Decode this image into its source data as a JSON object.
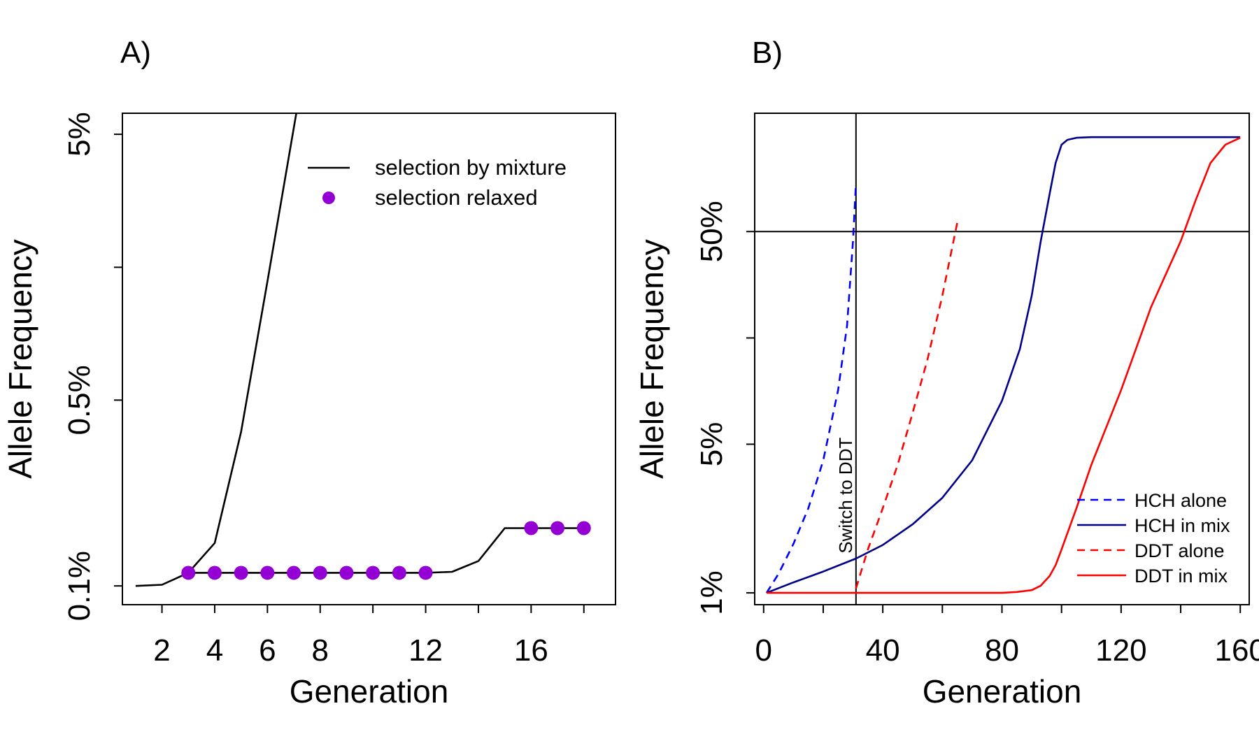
{
  "chart_data": [
    {
      "panel_label": "A)",
      "type": "line",
      "xlabel": "Generation",
      "ylabel": "Allele Frequency",
      "y_scale": "log",
      "xlim": [
        0.5,
        19.2
      ],
      "ylim_percent": [
        0.085,
        6.0
      ],
      "x_ticks": [
        2,
        4,
        6,
        8,
        12,
        16
      ],
      "x_tick_labels": [
        "2",
        "4",
        "6",
        "8",
        "12",
        "16"
      ],
      "x_tick_marks": [
        2,
        4,
        6,
        8,
        10,
        12,
        14,
        16,
        18
      ],
      "y_ticks": [
        0.1,
        0.5,
        5
      ],
      "y_tick_labels": [
        "0.1%",
        "0.5%",
        "5%"
      ],
      "y_tick_marks": [
        0.1,
        0.5,
        1.58,
        5
      ],
      "legend_position": "top-right",
      "legend": [
        {
          "label": "selection by mixture",
          "symbol": "line",
          "color": "#000000"
        },
        {
          "label": "selection relaxed",
          "symbol": "dot",
          "color": "#9400D3"
        }
      ],
      "series": [
        {
          "name": "selection by mixture",
          "style": "solid",
          "color": "#000000",
          "x": [
            1,
            2,
            3,
            4,
            5,
            6,
            7,
            8
          ],
          "y": [
            0.1,
            0.101,
            0.112,
            0.145,
            0.38,
            1.4,
            5.3,
            20
          ]
        },
        {
          "name": "selection relaxed",
          "style": "solid",
          "color": "#000000",
          "x": [
            3,
            4,
            5,
            6,
            7,
            8,
            9,
            10,
            11,
            12,
            13,
            14,
            15,
            16,
            17,
            18
          ],
          "y": [
            0.112,
            0.112,
            0.112,
            0.112,
            0.112,
            0.112,
            0.112,
            0.112,
            0.112,
            0.112,
            0.113,
            0.124,
            0.165,
            0.165,
            0.165,
            0.165
          ]
        },
        {
          "name": "selection relaxed",
          "style": "points",
          "color": "#9400D3",
          "x": [
            3,
            4,
            5,
            6,
            7,
            8,
            9,
            10,
            11,
            12,
            16,
            17,
            18
          ],
          "y": [
            0.112,
            0.112,
            0.112,
            0.112,
            0.112,
            0.112,
            0.112,
            0.112,
            0.112,
            0.112,
            0.165,
            0.165,
            0.165
          ]
        }
      ]
    },
    {
      "panel_label": "B)",
      "type": "line",
      "xlabel": "Generation",
      "ylabel": "Allele Frequency",
      "y_scale": "log",
      "xlim": [
        -3,
        163
      ],
      "ylim_percent": [
        0.88,
        180
      ],
      "x_ticks": [
        0,
        40,
        80,
        120,
        160
      ],
      "x_tick_labels": [
        "0",
        "40",
        "80",
        "120",
        "160"
      ],
      "x_tick_marks": [
        0,
        20,
        40,
        60,
        80,
        100,
        120,
        140,
        160
      ],
      "y_ticks": [
        1,
        5,
        50
      ],
      "y_tick_labels": [
        "1%",
        "5%",
        "50%"
      ],
      "y_tick_marks": [
        1,
        5,
        15.8,
        50
      ],
      "reference_lines": {
        "vertical_x": 31,
        "horizontal_y": 50
      },
      "annotation": {
        "text": "Switch to DDT",
        "x": 31,
        "y_range": [
          1.5,
          5.5
        ],
        "orientation": "vertical"
      },
      "legend_position": "bottom-right",
      "legend": [
        {
          "label": "HCH alone",
          "color": "#0000FF",
          "style": "dashed"
        },
        {
          "label": "HCH in mix",
          "color": "#00008B",
          "style": "solid"
        },
        {
          "label": "DDT alone",
          "color": "#FF0000",
          "style": "dashed"
        },
        {
          "label": "DDT in mix",
          "color": "#FF0000",
          "style": "solid"
        }
      ],
      "series": [
        {
          "name": "HCH alone",
          "color": "#0000FF",
          "style": "dashed",
          "x": [
            1,
            5,
            10,
            15,
            20,
            25,
            28,
            30,
            31
          ],
          "y": [
            1,
            1.23,
            1.7,
            2.5,
            4.2,
            9,
            18,
            45,
            85
          ]
        },
        {
          "name": "HCH in mix",
          "color": "#00008B",
          "style": "solid",
          "x": [
            1,
            10,
            20,
            31,
            40,
            50,
            60,
            70,
            80,
            86,
            90,
            93,
            96,
            98,
            100,
            102,
            105,
            110,
            120,
            140,
            160
          ],
          "y": [
            1,
            1.12,
            1.26,
            1.45,
            1.68,
            2.1,
            2.8,
            4.2,
            8,
            14,
            25,
            45,
            75,
            105,
            128,
            135,
            138,
            139,
            139,
            139,
            139
          ]
        },
        {
          "name": "DDT alone",
          "color": "#FF0000",
          "style": "dashed",
          "x": [
            31,
            35,
            40,
            45,
            50,
            55,
            60,
            65
          ],
          "y": [
            1.05,
            1.6,
            2.5,
            4,
            7,
            12.5,
            25,
            55
          ]
        },
        {
          "name": "DDT in mix",
          "color": "#FF0000",
          "style": "solid",
          "x": [
            1,
            30,
            60,
            80,
            85,
            90,
            93,
            96,
            98,
            100,
            105,
            110,
            120,
            130,
            140,
            145,
            150,
            155,
            160
          ],
          "y": [
            1,
            1,
            1,
            1,
            1.01,
            1.03,
            1.08,
            1.2,
            1.35,
            1.6,
            2.5,
            4,
            9,
            22,
            45,
            70,
            105,
            128,
            138
          ]
        }
      ]
    }
  ]
}
